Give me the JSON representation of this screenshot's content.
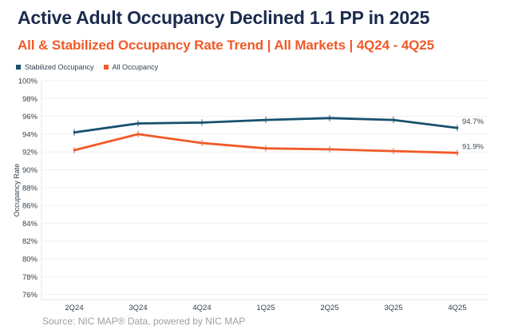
{
  "header": {
    "title": "Active Adult Occupancy Declined 1.1 PP in 2025",
    "subtitle": "All & Stabilized Occupancy Rate Trend | All Markets | 4Q24 - 4Q25"
  },
  "footer": {
    "source": "Source: NIC MAP® Data, powered by NIC MAP"
  },
  "theme": {
    "title_color": "#1B2B4D",
    "accent_orange": "#F05A28",
    "axis_text_color": "#33414E",
    "grid_color": "#EDF0F2",
    "axis_line_color": "#E2E6E9",
    "end_label_color": "#3C4653",
    "source_color": "#9AA0A6"
  },
  "chart_data": {
    "type": "line",
    "title": "All & Stabilized Occupancy Rate Trend",
    "categories": [
      "2Q24",
      "3Q24",
      "4Q24",
      "1Q25",
      "2Q25",
      "3Q25",
      "4Q25"
    ],
    "series": [
      {
        "name": "Stabilized Occupancy",
        "color": "#17506E",
        "values": [
          94.2,
          95.2,
          95.3,
          95.6,
          95.8,
          95.6,
          94.7
        ],
        "end_label": "94.7%"
      },
      {
        "name": "All Occupancy",
        "color": "#F05A28",
        "values": [
          92.2,
          94.0,
          93.0,
          92.4,
          92.3,
          92.1,
          91.9
        ],
        "end_label": "91.9%"
      }
    ],
    "xlabel": "",
    "ylabel": "Occupancy Rate",
    "ylim": [
      76,
      100
    ],
    "y_ticks": [
      "100%",
      "98%",
      "96%",
      "94%",
      "92%",
      "90%",
      "88%",
      "86%",
      "84%",
      "82%",
      "80%",
      "78%",
      "76%"
    ],
    "grid": "horizontal",
    "legend_position": "top-left"
  }
}
